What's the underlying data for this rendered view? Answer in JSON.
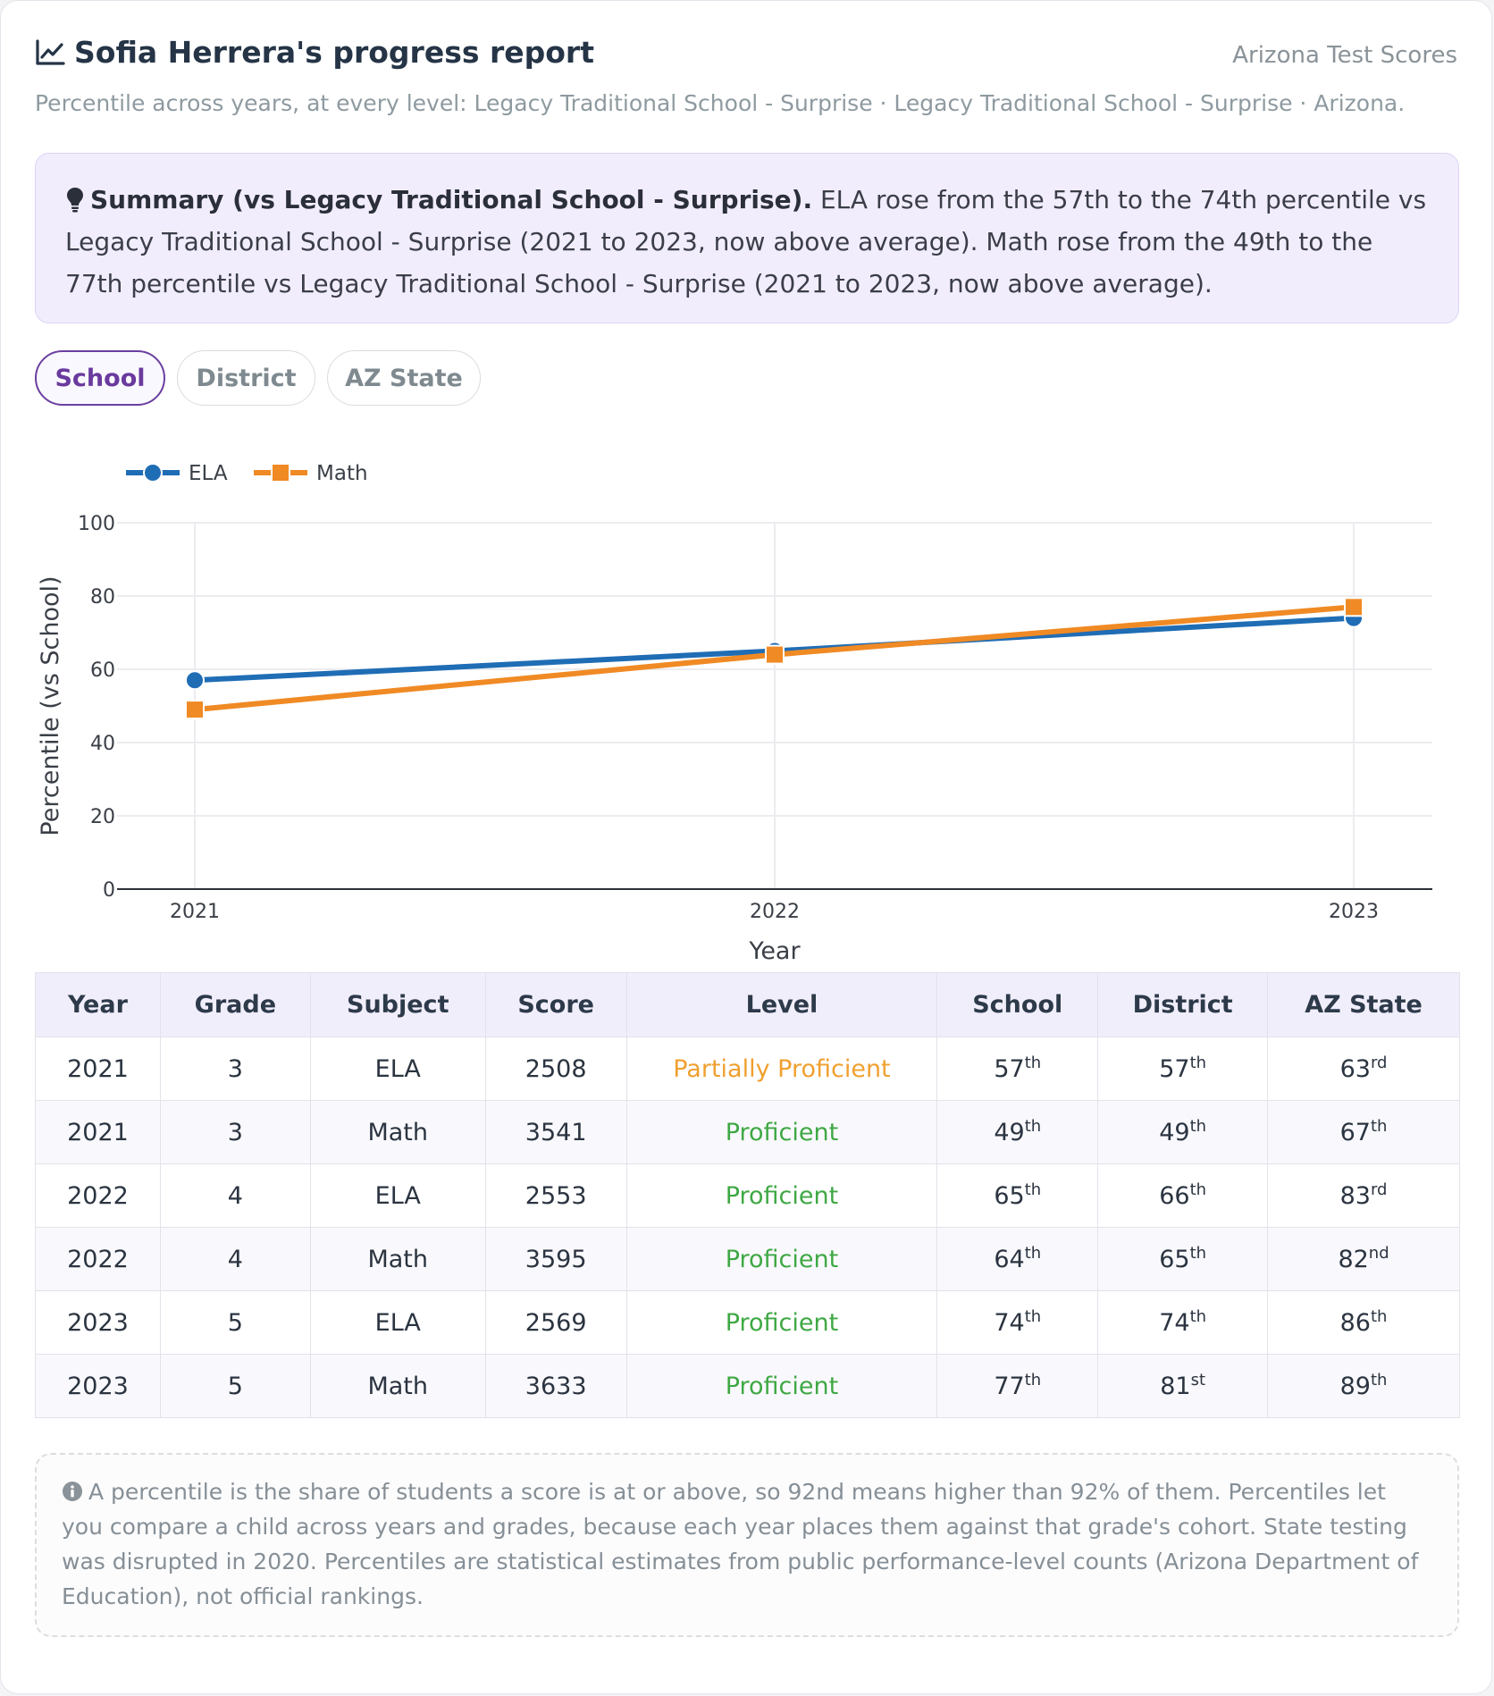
{
  "header": {
    "title": "Sofia Herrera's progress report",
    "brand": "Arizona Test Scores",
    "subtitle": "Percentile across years, at every level: Legacy Traditional School - Surprise · Legacy Traditional School - Surprise · Arizona."
  },
  "summary": {
    "heading": "Summary (vs Legacy Traditional School - Surprise).",
    "text": "ELA rose from the 57th to the 74th percentile vs Legacy Traditional School - Surprise (2021 to 2023, now above average). Math rose from the 49th to the 77th percentile vs Legacy Traditional School - Surprise (2021 to 2023, now above average)."
  },
  "tabs": [
    {
      "label": "School",
      "active": true
    },
    {
      "label": "District",
      "active": false
    },
    {
      "label": "AZ State",
      "active": false
    }
  ],
  "chart_data": {
    "type": "line",
    "title": "",
    "xlabel": "Year",
    "ylabel": "Percentile (vs School)",
    "x": [
      "2021",
      "2022",
      "2023"
    ],
    "ylim": [
      0,
      100
    ],
    "yticks": [
      0,
      20,
      40,
      60,
      80,
      100
    ],
    "grid": true,
    "legend": "top-left",
    "series": [
      {
        "name": "ELA",
        "values": [
          57,
          65,
          74
        ],
        "color": "#1f6db5",
        "marker": "circle"
      },
      {
        "name": "Math",
        "values": [
          49,
          64,
          77
        ],
        "color": "#f08a24",
        "marker": "square"
      }
    ]
  },
  "table": {
    "headers": [
      "Year",
      "Grade",
      "Subject",
      "Score",
      "Level",
      "School",
      "District",
      "AZ State"
    ],
    "rows": [
      {
        "year": "2021",
        "grade": "3",
        "subject": "ELA",
        "score": "2508",
        "level": "Partially Proficient",
        "level_color": "#f0a030",
        "school": [
          "57",
          "th"
        ],
        "district": [
          "57",
          "th"
        ],
        "state": [
          "63",
          "rd"
        ]
      },
      {
        "year": "2021",
        "grade": "3",
        "subject": "Math",
        "score": "3541",
        "level": "Proficient",
        "level_color": "#3fa844",
        "school": [
          "49",
          "th"
        ],
        "district": [
          "49",
          "th"
        ],
        "state": [
          "67",
          "th"
        ]
      },
      {
        "year": "2022",
        "grade": "4",
        "subject": "ELA",
        "score": "2553",
        "level": "Proficient",
        "level_color": "#3fa844",
        "school": [
          "65",
          "th"
        ],
        "district": [
          "66",
          "th"
        ],
        "state": [
          "83",
          "rd"
        ]
      },
      {
        "year": "2022",
        "grade": "4",
        "subject": "Math",
        "score": "3595",
        "level": "Proficient",
        "level_color": "#3fa844",
        "school": [
          "64",
          "th"
        ],
        "district": [
          "65",
          "th"
        ],
        "state": [
          "82",
          "nd"
        ]
      },
      {
        "year": "2023",
        "grade": "5",
        "subject": "ELA",
        "score": "2569",
        "level": "Proficient",
        "level_color": "#3fa844",
        "school": [
          "74",
          "th"
        ],
        "district": [
          "74",
          "th"
        ],
        "state": [
          "86",
          "th"
        ]
      },
      {
        "year": "2023",
        "grade": "5",
        "subject": "Math",
        "score": "3633",
        "level": "Proficient",
        "level_color": "#3fa844",
        "school": [
          "77",
          "th"
        ],
        "district": [
          "81",
          "st"
        ],
        "state": [
          "89",
          "th"
        ]
      }
    ]
  },
  "note": {
    "text": "A percentile is the share of students a score is at or above, so 92nd means higher than 92% of them. Percentiles let you compare a child across years and grades, because each year places them against that grade's cohort. State testing was disrupted in 2020. Percentiles are statistical estimates from public performance-level counts (Arizona Department of Education), not official rankings."
  },
  "icons": {
    "title": "chart-line-icon",
    "summary": "lightbulb-icon",
    "note": "info-circle-icon"
  }
}
